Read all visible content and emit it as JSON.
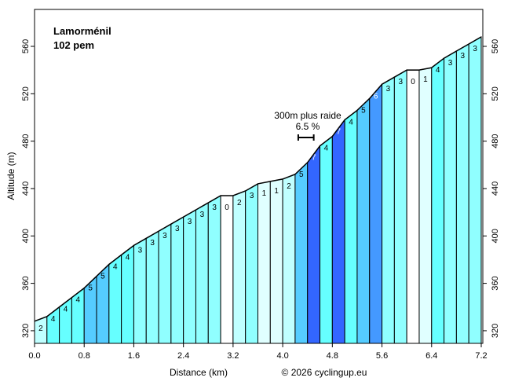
{
  "chart_data": {
    "type": "area",
    "title": "Lamorménil",
    "subtitle": "102 pem",
    "xlabel": "Distance (km)",
    "ylabel": "Altitude (m)",
    "copyright": "© 2026 cyclingup.eu",
    "xlim": [
      0,
      7.2
    ],
    "ylim": [
      312,
      594
    ],
    "x_ticks": [
      "0.0",
      "0.8",
      "1.6",
      "2.4",
      "3.2",
      "4.0",
      "4.8",
      "5.6",
      "6.4",
      "7.2"
    ],
    "y_ticks": [
      320,
      360,
      400,
      440,
      480,
      520,
      560
    ],
    "segment_length_km": 0.2,
    "start_altitude": 328,
    "gradients": [
      2,
      4,
      4,
      4,
      5,
      5,
      4,
      4,
      3,
      3,
      3,
      3,
      3,
      3,
      3,
      0,
      2,
      3,
      1,
      1,
      2,
      5,
      7,
      4,
      7,
      4,
      5,
      6,
      3,
      3,
      0,
      1,
      4,
      3,
      3,
      3
    ],
    "annotation": {
      "line1": "300m plus raide",
      "line2": "6.5 %",
      "from_km": 4.2,
      "to_km": 4.5
    },
    "gradient_colors": {
      "0": "#ffffff",
      "1": "#e0ffff",
      "2": "#c0ffff",
      "3": "#90ffff",
      "4": "#66ffff",
      "5": "#55ccff",
      "6": "#4499ff",
      "7": "#3366ff"
    }
  }
}
